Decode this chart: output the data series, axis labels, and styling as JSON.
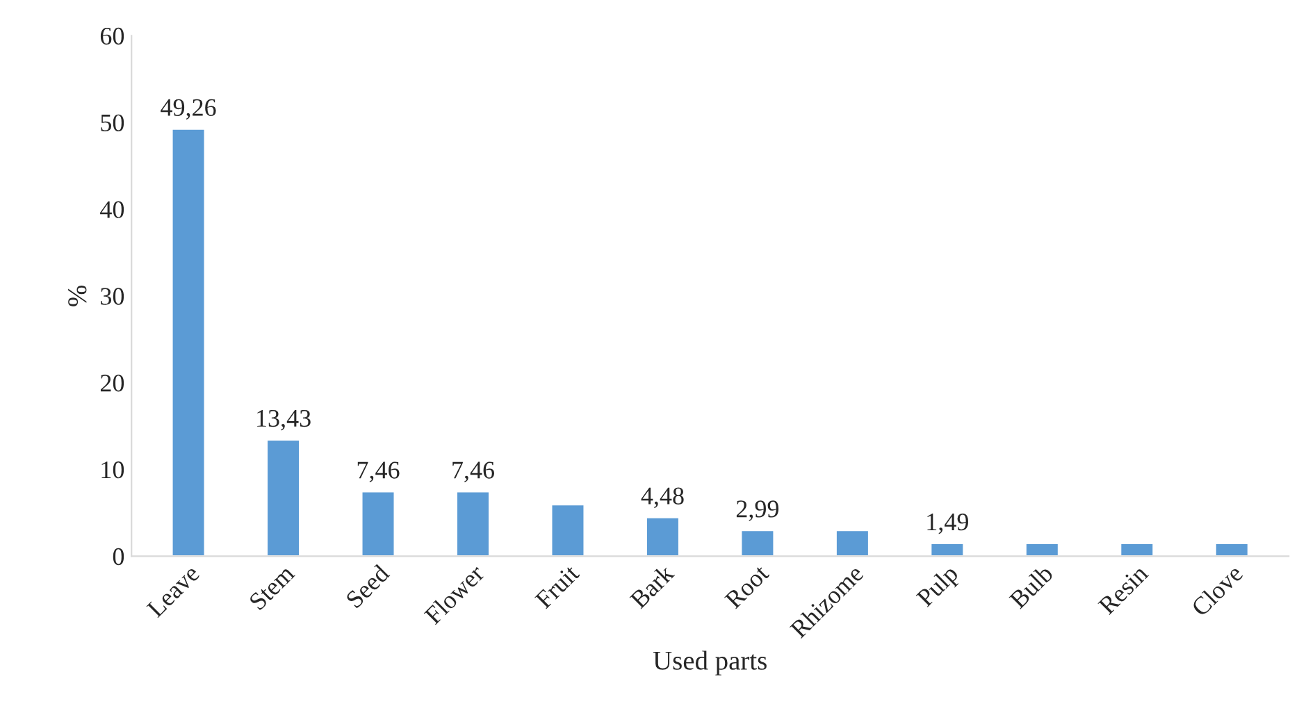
{
  "chart_data": {
    "type": "bar",
    "xlabel": "Used parts",
    "ylabel": "%",
    "categories": [
      "Leave",
      "Stem",
      "Seed",
      "Flower",
      "Fruit",
      "Bark",
      "Root",
      "Rhizome",
      "Pulp",
      "Bulb",
      "Resin",
      "Clove"
    ],
    "values": [
      49.26,
      13.43,
      7.46,
      7.46,
      5.97,
      4.48,
      2.99,
      2.99,
      1.49,
      1.49,
      1.49,
      1.49
    ],
    "value_labels": [
      "49,26",
      "13,43",
      "7,46",
      "7,46",
      null,
      "4,48",
      "2,99",
      null,
      "1,49",
      null,
      null,
      null
    ],
    "color": "#5b9bd5",
    "ylim": [
      0,
      60
    ],
    "yticks": [
      0,
      10,
      20,
      30,
      40,
      50,
      60
    ],
    "grid": false,
    "legend": false
  }
}
